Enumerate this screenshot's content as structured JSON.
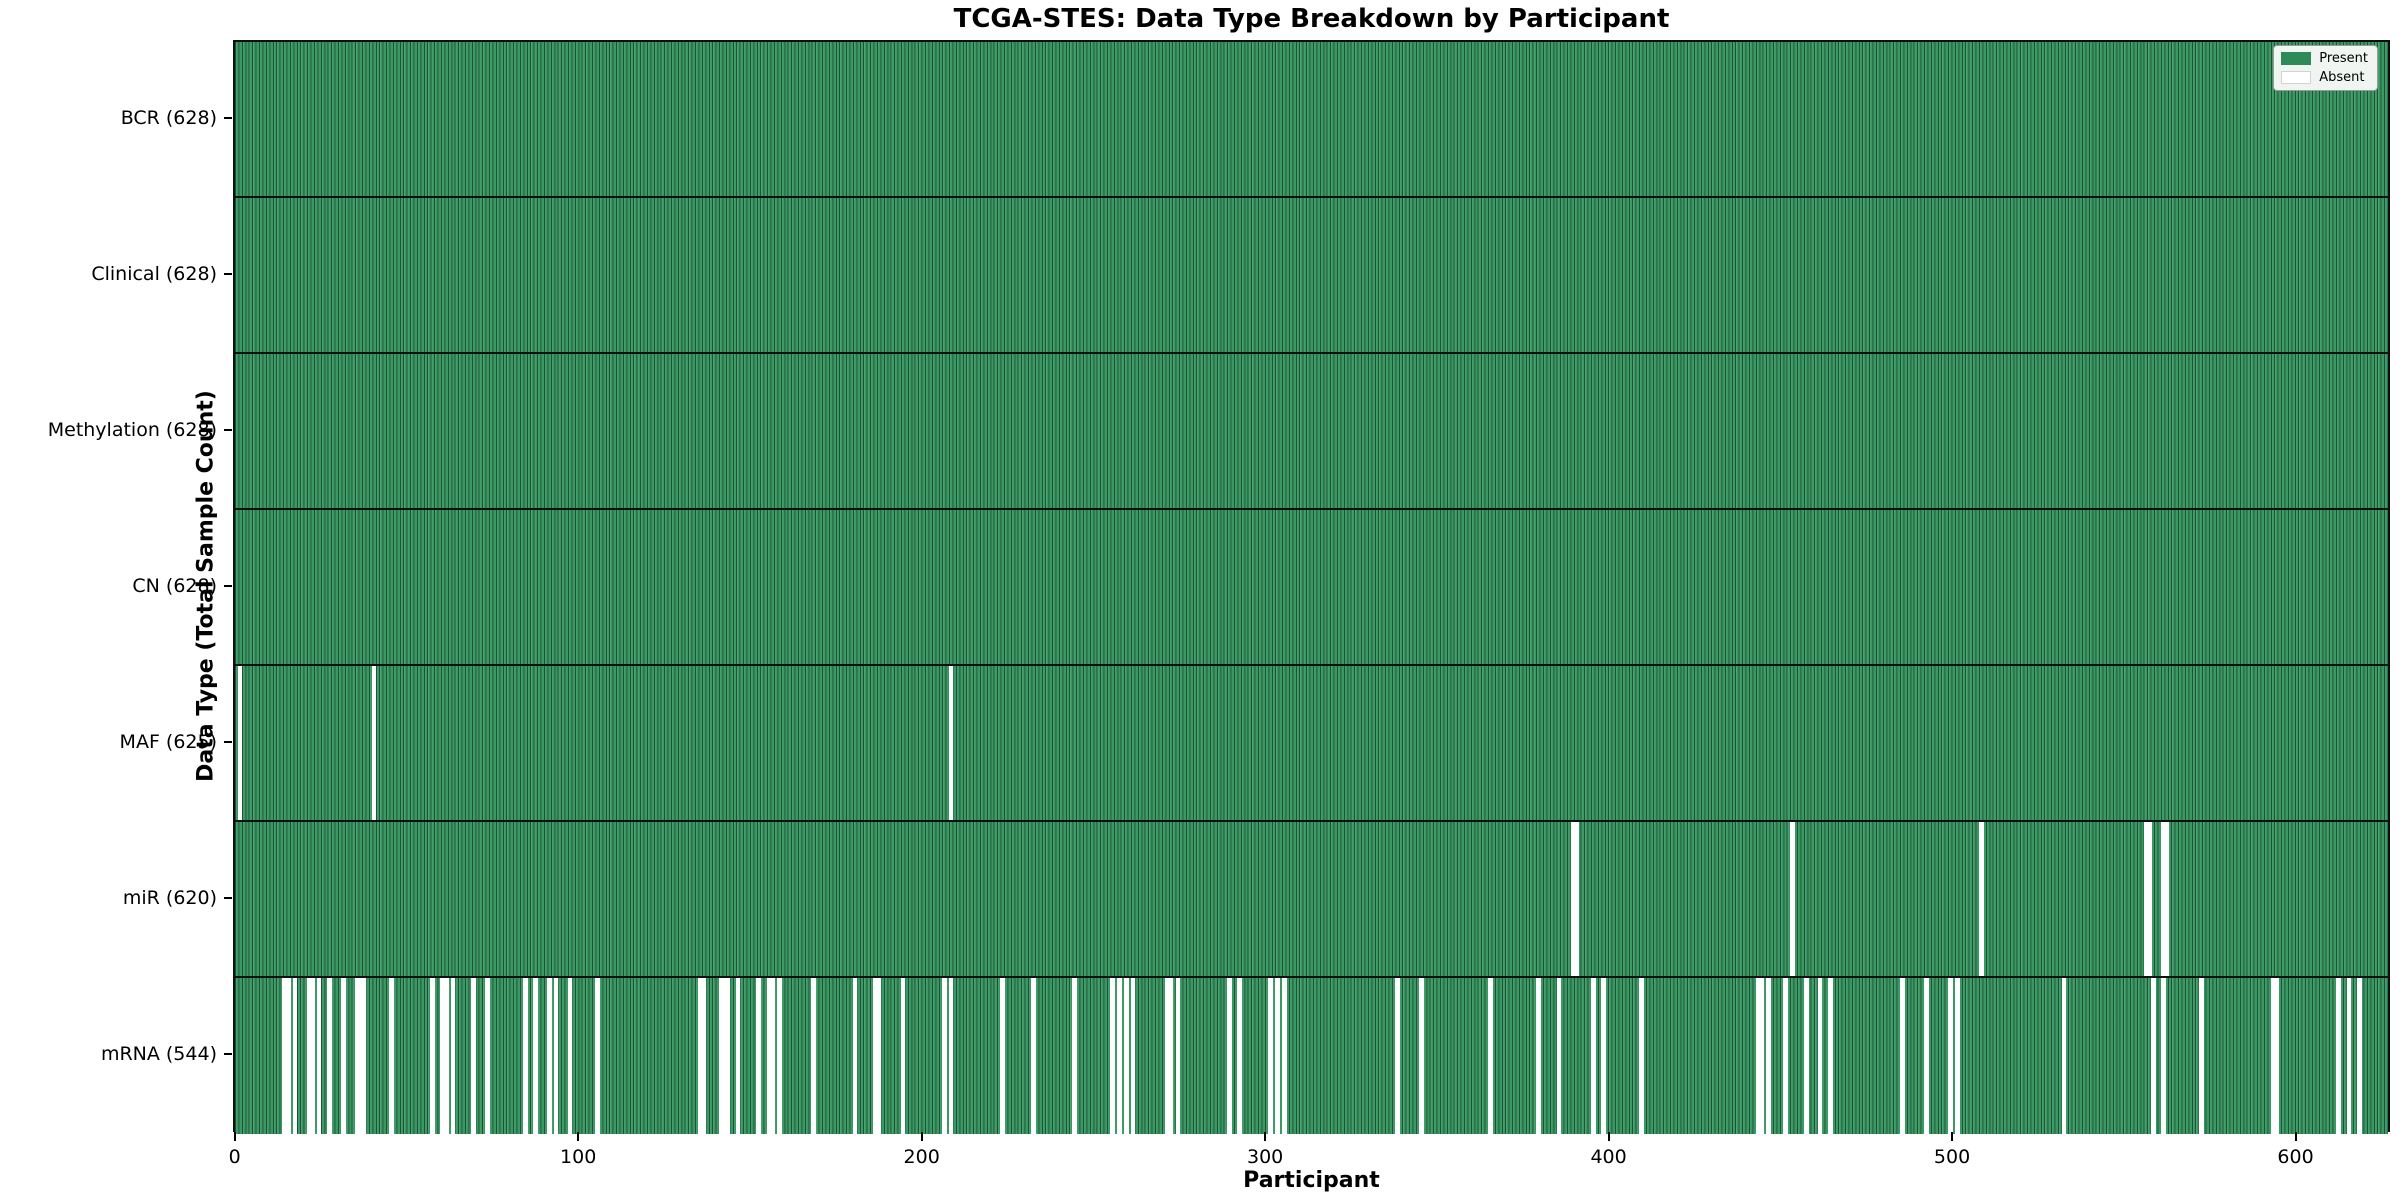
{
  "chart_data": {
    "type": "heatmap",
    "title": "TCGA-STES: Data Type Breakdown by Participant",
    "xlabel": "Participant",
    "ylabel": "Data Type (Total Sample Count)",
    "n_participants": 628,
    "x_ticks": [
      0,
      100,
      200,
      300,
      400,
      500,
      600
    ],
    "grid": false,
    "legend_position": "upper right",
    "legend": [
      {
        "label": "Present",
        "color": "#2e8b57"
      },
      {
        "label": "Absent",
        "color": "#ffffff"
      }
    ],
    "colors": {
      "present": "#2e8b57",
      "present_edge": "#123f27",
      "absent": "#ffffff"
    },
    "rows": [
      {
        "label": "BCR",
        "count": 628,
        "display": "BCR (628)",
        "absent": []
      },
      {
        "label": "Clinical",
        "count": 628,
        "display": "Clinical (628)",
        "absent": []
      },
      {
        "label": "Methylation",
        "count": 628,
        "display": "Methylation (628)",
        "absent": []
      },
      {
        "label": "CN",
        "count": 628,
        "display": "CN (628)",
        "absent": []
      },
      {
        "label": "MAF",
        "count": 625,
        "display": "MAF (625)",
        "absent": [
          1,
          40,
          208
        ]
      },
      {
        "label": "miR",
        "count": 620,
        "display": "miR (620)",
        "absent": [
          389,
          390,
          453,
          508,
          556,
          557,
          561,
          562
        ]
      },
      {
        "label": "mRNA",
        "count": 544,
        "display": "mRNA (544)",
        "absent": [
          14,
          15,
          17,
          21,
          22,
          24,
          27,
          31,
          35,
          36,
          37,
          45,
          57,
          60,
          61,
          63,
          69,
          73,
          84,
          87,
          91,
          93,
          97,
          105,
          135,
          136,
          141,
          142,
          143,
          146,
          152,
          155,
          156,
          158,
          168,
          180,
          186,
          187,
          194,
          206,
          208,
          223,
          232,
          244,
          255,
          257,
          259,
          261,
          271,
          272,
          274,
          289,
          292,
          301,
          303,
          305,
          338,
          345,
          365,
          379,
          385,
          395,
          398,
          409,
          443,
          444,
          446,
          451,
          457,
          461,
          464,
          485,
          492,
          499,
          501,
          532,
          558,
          561,
          572,
          593,
          594,
          612,
          615,
          618
        ]
      }
    ]
  }
}
